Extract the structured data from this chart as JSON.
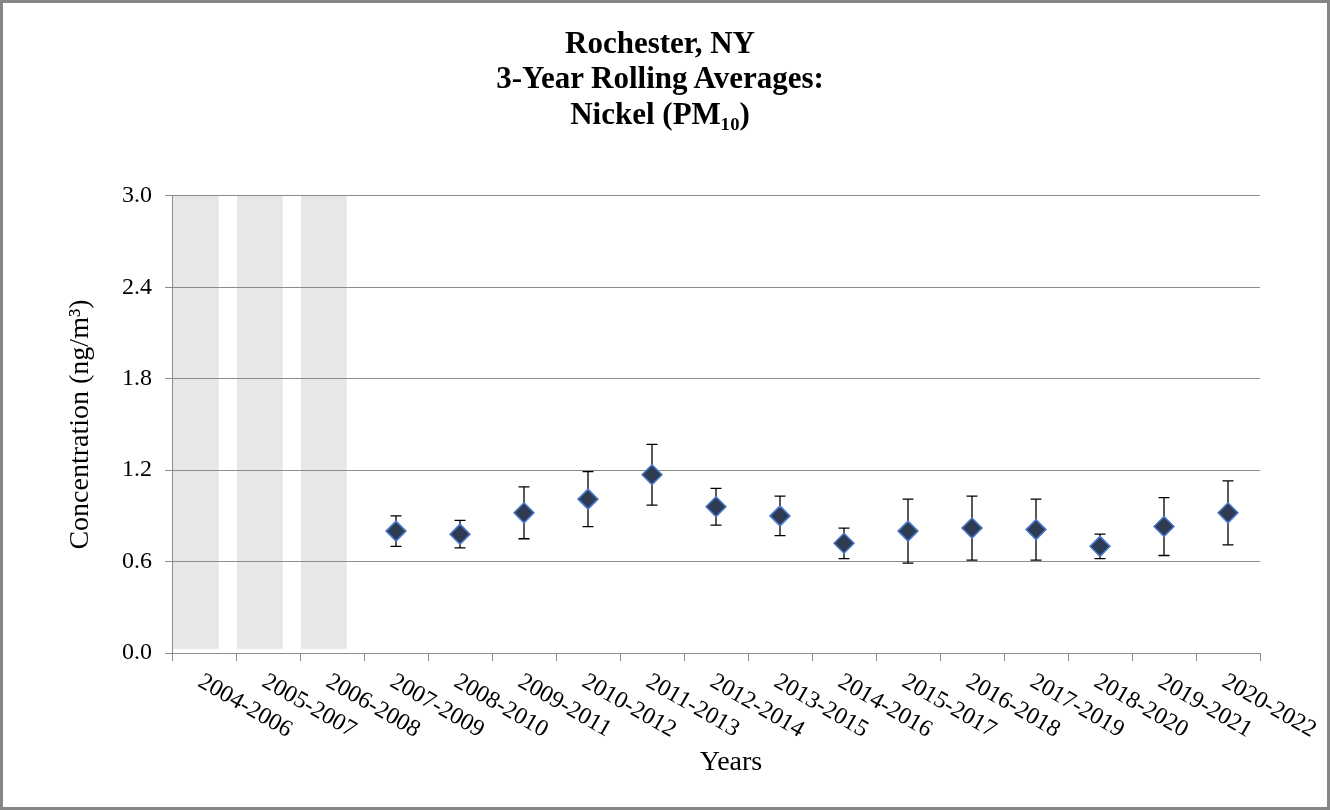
{
  "chart_data": {
    "type": "scatter",
    "title": "Rochester, NY\n3-Year Rolling Averages:\nNickel (PM₁₀)",
    "xlabel": "Years",
    "ylabel": "Concentration (ng/m³)",
    "categories": [
      "2004-2006",
      "2005-2007",
      "2006-2008",
      "2007-2009",
      "2008-2010",
      "2009-2011",
      "2010-2012",
      "2011-2013",
      "2012-2014",
      "2013-2015",
      "2014-2016",
      "2015-2017",
      "2016-2018",
      "2017-2019",
      "2018-2020",
      "2019-2021",
      "2020-2022"
    ],
    "values": [
      null,
      null,
      null,
      0.8,
      0.78,
      0.92,
      1.01,
      1.17,
      0.96,
      0.9,
      0.72,
      0.8,
      0.82,
      0.81,
      0.7,
      0.83,
      0.92
    ],
    "errors": [
      null,
      null,
      null,
      0.1,
      0.09,
      0.17,
      0.18,
      0.2,
      0.12,
      0.13,
      0.1,
      0.21,
      0.21,
      0.2,
      0.08,
      0.19,
      0.21
    ],
    "color": "#2e3b52",
    "marker": "diamond",
    "ylim": [
      0,
      3
    ],
    "yticks": [
      {
        "value": 0,
        "label": "0.0"
      },
      0.6,
      1.2,
      1.8,
      2.4,
      {
        "value": 3,
        "label": "3.0"
      }
    ],
    "grid": "y",
    "bands": [
      {
        "axis": "x",
        "from": "2004-2006",
        "to": "2004-2006",
        "color": "#e7e7e7"
      },
      {
        "axis": "x",
        "from": "2005-2007",
        "to": "2005-2007",
        "color": "#e7e7e7"
      },
      {
        "axis": "x",
        "from": "2006-2008",
        "to": "2006-2008",
        "color": "#e7e7e7"
      }
    ]
  }
}
